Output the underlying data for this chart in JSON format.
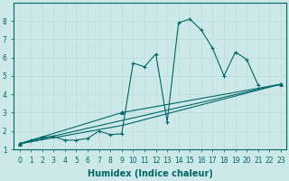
{
  "xlabel": "Humidex (Indice chaleur)",
  "xlim": [
    -0.5,
    23.5
  ],
  "ylim": [
    1,
    9
  ],
  "background_color": "#cce8e8",
  "grid_color": "#bbdddd",
  "line_color": "#006666",
  "main_line": {
    "x": [
      0,
      1,
      2,
      3,
      4,
      5,
      6,
      7,
      8,
      9,
      10,
      11,
      12,
      13,
      14,
      15,
      16,
      17,
      18,
      19,
      20,
      21,
      22,
      23
    ],
    "y": [
      1.3,
      1.5,
      1.65,
      1.7,
      1.5,
      1.5,
      1.6,
      2.0,
      1.8,
      1.85,
      5.7,
      5.5,
      6.2,
      2.5,
      7.9,
      8.1,
      7.5,
      6.5,
      5.0,
      6.3,
      5.9,
      4.5,
      null,
      null
    ]
  },
  "straight_line": {
    "x": [
      0,
      23
    ],
    "y": [
      1.3,
      4.55
    ]
  },
  "triangle_low": {
    "x": [
      0,
      9,
      23
    ],
    "y": [
      1.3,
      2.3,
      4.55
    ]
  },
  "triangle_high": {
    "x": [
      0,
      9,
      23
    ],
    "y": [
      1.3,
      3.0,
      4.55
    ]
  },
  "xticks": [
    0,
    1,
    2,
    3,
    4,
    5,
    6,
    7,
    8,
    9,
    10,
    11,
    12,
    13,
    14,
    15,
    16,
    17,
    18,
    19,
    20,
    21,
    22,
    23
  ],
  "yticks": [
    1,
    2,
    3,
    4,
    5,
    6,
    7,
    8
  ],
  "tick_fontsize": 5.5,
  "xlabel_fontsize": 7
}
